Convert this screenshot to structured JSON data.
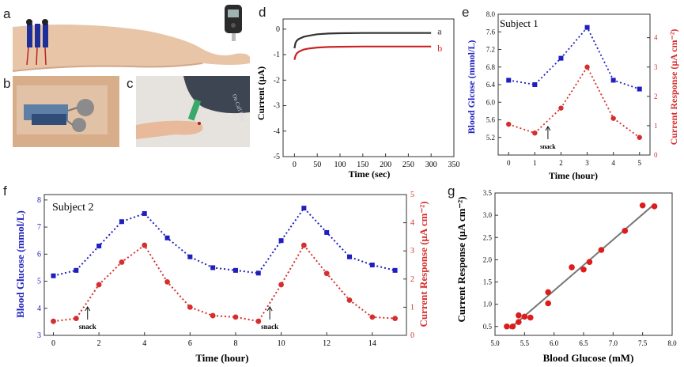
{
  "panel_labels": {
    "a": "a",
    "b": "b",
    "c": "c",
    "d": "d",
    "e": "e",
    "f": "f",
    "g": "g"
  },
  "photos": {
    "a": {
      "subject": "forearm with microneedle electrodes and glucose meter"
    },
    "b": {
      "subject": "flexible sensor patch on skin"
    },
    "c": {
      "subject": "finger-prick test with meter strip"
    },
    "meter_text": "On Call Plus"
  },
  "chart_data": [
    {
      "id": "d",
      "type": "line",
      "xlabel": "Time (sec)",
      "ylabel": "Current (μA)",
      "xlim": [
        -25,
        350
      ],
      "ylim": [
        -5,
        0.4
      ],
      "xticks": [
        0,
        50,
        100,
        150,
        200,
        250,
        300,
        350
      ],
      "yticks": [
        0,
        -1,
        -2,
        -3,
        -4,
        -5
      ],
      "series": [
        {
          "name": "a",
          "color": "#333333",
          "x": [
            0,
            2,
            5,
            10,
            20,
            30,
            50,
            75,
            100,
            150,
            200,
            250,
            300
          ],
          "y": [
            -0.75,
            -0.55,
            -0.45,
            -0.38,
            -0.3,
            -0.26,
            -0.2,
            -0.17,
            -0.16,
            -0.15,
            -0.15,
            -0.15,
            -0.15
          ]
        },
        {
          "name": "b",
          "color": "#cc2222",
          "x": [
            0,
            2,
            5,
            10,
            20,
            30,
            50,
            75,
            100,
            150,
            200,
            250,
            300
          ],
          "y": [
            -1.2,
            -1.05,
            -0.95,
            -0.88,
            -0.8,
            -0.76,
            -0.72,
            -0.7,
            -0.69,
            -0.68,
            -0.68,
            -0.68,
            -0.68
          ]
        }
      ]
    },
    {
      "id": "e",
      "type": "line",
      "annotation_title": "Subject 1",
      "xlabel": "Time (hour)",
      "ylabel_left": "Blood Glcose (mmol/L)",
      "ylabel_right": "Current Response (μA cm⁻²)",
      "xlim": [
        -0.4,
        5.4
      ],
      "ylim_left": [
        4.8,
        8.0
      ],
      "ylim_right": [
        0,
        4.8
      ],
      "xticks": [
        0,
        1,
        2,
        3,
        4,
        5
      ],
      "yticks_left": [
        5.2,
        5.6,
        6.0,
        6.4,
        6.8,
        7.2,
        7.6,
        8.0
      ],
      "yticks_right": [
        0,
        1,
        2,
        3,
        4
      ],
      "series": [
        {
          "name": "blood glucose",
          "axis": "left",
          "color": "#1f1fbf",
          "marker": "square",
          "x": [
            0,
            1,
            2,
            3,
            4,
            5
          ],
          "y": [
            6.5,
            6.4,
            7.0,
            7.7,
            6.5,
            6.3
          ]
        },
        {
          "name": "current response",
          "axis": "right",
          "color": "#d62d2d",
          "marker": "circle",
          "x": [
            0,
            1,
            2,
            3,
            4,
            5
          ],
          "y": [
            1.05,
            0.75,
            1.6,
            3.0,
            1.25,
            0.6
          ]
        }
      ],
      "annotations": [
        {
          "text": "snack",
          "x": 1.5
        }
      ]
    },
    {
      "id": "f",
      "type": "line",
      "annotation_title": "Subject 2",
      "xlabel": "Time (hour)",
      "ylabel_left": "Blood Glucose (mmol/L)",
      "ylabel_right": "Current Response (μA cm⁻²)",
      "xlim": [
        -0.4,
        15.5
      ],
      "ylim_left": [
        3,
        8.2
      ],
      "ylim_right": [
        0,
        5
      ],
      "xticks": [
        0,
        2,
        4,
        6,
        8,
        10,
        12,
        14
      ],
      "yticks_left": [
        3,
        4,
        5,
        6,
        7,
        8
      ],
      "yticks_right": [
        0,
        1,
        2,
        3,
        4,
        5
      ],
      "series": [
        {
          "name": "blood glucose",
          "axis": "left",
          "color": "#1f1fbf",
          "marker": "square",
          "x": [
            0,
            1,
            2,
            3,
            4,
            5,
            6,
            7,
            8,
            9,
            10,
            11,
            12,
            13,
            14,
            15
          ],
          "y": [
            5.2,
            5.4,
            6.3,
            7.2,
            7.5,
            6.6,
            5.9,
            5.5,
            5.4,
            5.3,
            6.5,
            7.7,
            6.8,
            5.9,
            5.6,
            5.4
          ]
        },
        {
          "name": "current response",
          "axis": "right",
          "color": "#d62d2d",
          "marker": "circle",
          "x": [
            0,
            1,
            2,
            3,
            4,
            5,
            6,
            7,
            8,
            9,
            10,
            11,
            12,
            13,
            14,
            15
          ],
          "y": [
            0.5,
            0.6,
            1.8,
            2.6,
            3.2,
            1.9,
            1.0,
            0.7,
            0.65,
            0.5,
            1.8,
            3.2,
            2.2,
            1.25,
            0.65,
            0.6
          ]
        }
      ],
      "annotations": [
        {
          "text": "snack",
          "x": 1.5
        },
        {
          "text": "snack",
          "x": 9.5
        }
      ]
    },
    {
      "id": "g",
      "type": "scatter",
      "xlabel": "Blood Glucose (mM)",
      "ylabel": "Current Response (μA cm⁻²)",
      "xlim": [
        5.0,
        8.0
      ],
      "ylim": [
        0.3,
        3.5
      ],
      "xticks": [
        5.0,
        5.5,
        6.0,
        6.5,
        7.0,
        7.5,
        8.0
      ],
      "yticks": [
        0.5,
        1.0,
        1.5,
        2.0,
        2.5,
        3.0,
        3.5
      ],
      "points": {
        "x": [
          5.2,
          5.3,
          5.4,
          5.4,
          5.5,
          5.6,
          5.9,
          5.9,
          6.3,
          6.5,
          6.6,
          6.8,
          7.2,
          7.5,
          7.7
        ],
        "y": [
          0.5,
          0.5,
          0.6,
          0.75,
          0.72,
          0.7,
          1.02,
          1.27,
          1.83,
          1.78,
          1.95,
          2.22,
          2.65,
          3.22,
          3.2
        ]
      },
      "fit": {
        "x": [
          5.25,
          7.7
        ],
        "y": [
          0.45,
          3.25
        ],
        "color": "#777777"
      },
      "point_color": "#dd1c1c"
    }
  ]
}
